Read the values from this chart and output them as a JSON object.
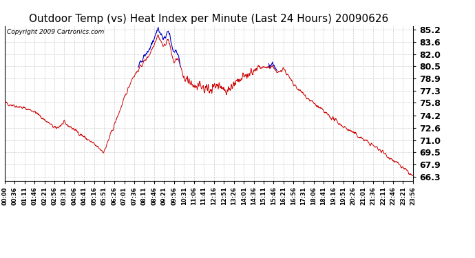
{
  "title": "Outdoor Temp (vs) Heat Index per Minute (Last 24 Hours) 20090626",
  "copyright": "Copyright 2009 Cartronics.com",
  "y_ticks": [
    66.3,
    67.9,
    69.5,
    71.0,
    72.6,
    74.2,
    75.8,
    77.3,
    78.9,
    80.5,
    82.0,
    83.6,
    85.2
  ],
  "ylim": [
    65.8,
    85.7
  ],
  "x_tick_labels": [
    "00:00",
    "00:36",
    "01:11",
    "01:46",
    "02:21",
    "02:56",
    "03:31",
    "04:06",
    "04:41",
    "05:16",
    "05:51",
    "06:26",
    "07:01",
    "07:36",
    "08:11",
    "08:46",
    "09:21",
    "09:56",
    "10:31",
    "11:06",
    "11:41",
    "12:16",
    "12:51",
    "13:26",
    "14:01",
    "14:36",
    "15:11",
    "15:46",
    "16:21",
    "16:56",
    "17:31",
    "18:06",
    "18:41",
    "19:16",
    "19:51",
    "20:26",
    "21:01",
    "21:36",
    "22:11",
    "22:46",
    "23:21",
    "23:56"
  ],
  "bg_color": "#ffffff",
  "grid_color": "#cccccc",
  "red_color": "#cc0000",
  "blue_color": "#0000cc",
  "title_fontsize": 11,
  "copyright_fontsize": 6.5,
  "ytick_fontsize": 9,
  "xtick_fontsize": 6
}
